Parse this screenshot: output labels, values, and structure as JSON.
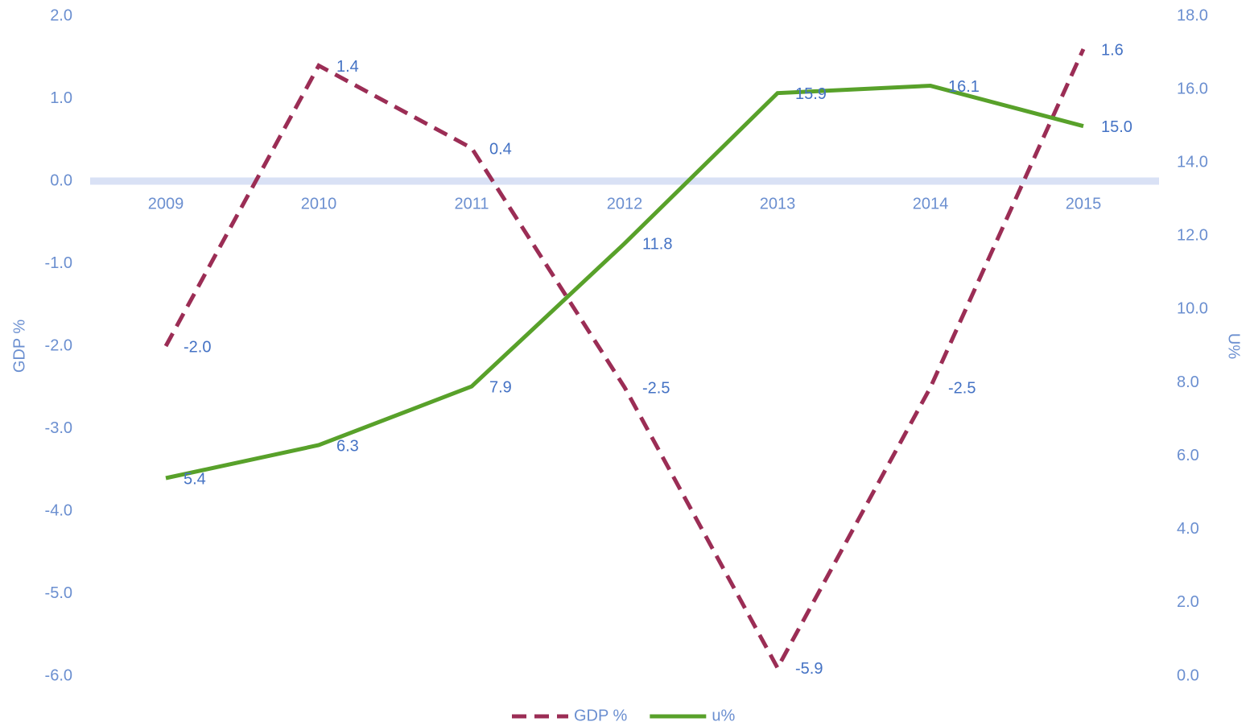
{
  "chart_data": {
    "type": "line",
    "categories": [
      "2009",
      "2010",
      "2011",
      "2012",
      "2013",
      "2014",
      "2015"
    ],
    "series": [
      {
        "name": "GDP %",
        "color": "#9b2d55",
        "dash": true,
        "values": [
          -2.0,
          1.4,
          0.4,
          -2.5,
          -5.9,
          -2.5,
          1.6
        ],
        "value_labels": [
          "-2.0",
          "1.4",
          "0.4",
          "-2.5",
          "-5.9",
          "-2.5",
          "1.6"
        ]
      },
      {
        "name": "u%",
        "color": "#58a12a",
        "axis": "y2",
        "values": [
          5.4,
          6.3,
          7.9,
          11.8,
          15.9,
          16.1,
          15.0
        ],
        "value_labels": [
          "5.4",
          "6.3",
          "7.9",
          "11.8",
          "15.9",
          "16.1",
          "15.0"
        ]
      }
    ],
    "y_label": "GDP %",
    "y2_label": "U%",
    "ylim": [
      -6,
      2
    ],
    "yticks": [
      {
        "value": -6,
        "label": "-6.0"
      },
      {
        "value": -5,
        "label": "-5.0"
      },
      {
        "value": -4,
        "label": "-4.0"
      },
      {
        "value": -3,
        "label": "-3.0"
      },
      {
        "value": -2,
        "label": "-2.0"
      },
      {
        "value": -1,
        "label": "-1.0"
      },
      {
        "value": 0,
        "label": "0.0"
      },
      {
        "value": 1,
        "label": "1.0"
      },
      {
        "value": 2,
        "label": "2.0"
      }
    ],
    "y2lim": [
      0,
      18
    ],
    "y2ticks": [
      {
        "value": 0,
        "label": "0.0"
      },
      {
        "value": 2,
        "label": "2.0"
      },
      {
        "value": 4,
        "label": "4.0"
      },
      {
        "value": 6,
        "label": "6.0"
      },
      {
        "value": 8,
        "label": "8.0"
      },
      {
        "value": 10,
        "label": "10.0"
      },
      {
        "value": 12,
        "label": "12.0"
      },
      {
        "value": 14,
        "label": "14.0"
      },
      {
        "value": 16,
        "label": "16.0"
      },
      {
        "value": 18,
        "label": "18.0"
      }
    ],
    "legend": "bottom"
  }
}
